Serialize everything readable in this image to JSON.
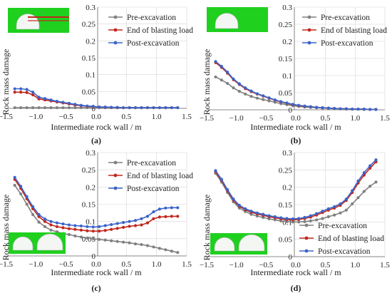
{
  "chart_data": [
    {
      "type": "line",
      "panel_label": "(a)",
      "xlabel": "Intermediate rock wall / m",
      "ylabel": "Rock mass damage",
      "xlim": [
        -1.5,
        1.5
      ],
      "ylim": [
        0,
        0.3
      ],
      "xticks": [
        "−1.5",
        "−1.0",
        "−0.5",
        "0.0",
        "0.5",
        "1.0",
        "1.5"
      ],
      "yticks": [
        "0",
        "0.05",
        "0.1",
        "0.15",
        "0.2",
        "0.25",
        "0.3"
      ],
      "grid": true,
      "legend_position": "top-right",
      "inset": "single-tunnel",
      "x": [
        -1.35,
        -1.25,
        -1.15,
        -1.05,
        -0.95,
        -0.85,
        -0.75,
        -0.65,
        -0.55,
        -0.45,
        -0.35,
        -0.25,
        -0.15,
        -0.05,
        0.05,
        0.15,
        0.25,
        0.35,
        0.45,
        0.55,
        0.65,
        0.75,
        0.85,
        0.95,
        1.05,
        1.15,
        1.25,
        1.35
      ],
      "series": [
        {
          "name": "Pre-excavation",
          "color": "#808080",
          "values": [
            0.002,
            0.002,
            0.002,
            0.002,
            0.002,
            0.002,
            0.002,
            0.002,
            0.002,
            0.002,
            0.002,
            0.002,
            0.002,
            0.002,
            0.002,
            0.002,
            0.002,
            0.002,
            0.002,
            0.002,
            0.002,
            0.002,
            0.002,
            0.002,
            0.002,
            0.002,
            0.002,
            0.002
          ]
        },
        {
          "name": "End of blasting load",
          "color": "#c0281e",
          "values": [
            0.048,
            0.048,
            0.047,
            0.04,
            0.028,
            0.025,
            0.022,
            0.019,
            0.016,
            0.013,
            0.01,
            0.008,
            0.006,
            0.005,
            0.004,
            0.003,
            0.003,
            0.002,
            0.002,
            0.002,
            0.002,
            0.002,
            0.002,
            0.002,
            0.002,
            0.002,
            0.002,
            0.002
          ]
        },
        {
          "name": "Post-excavation",
          "color": "#3c64c8",
          "values": [
            0.058,
            0.058,
            0.056,
            0.048,
            0.033,
            0.029,
            0.025,
            0.021,
            0.018,
            0.015,
            0.012,
            0.009,
            0.007,
            0.006,
            0.004,
            0.004,
            0.003,
            0.003,
            0.002,
            0.002,
            0.002,
            0.002,
            0.002,
            0.002,
            0.002,
            0.002,
            0.002,
            0.002
          ]
        }
      ]
    },
    {
      "type": "line",
      "panel_label": "(b)",
      "xlabel": "Intermediate rock wall / m",
      "ylabel": "Rock mass damage",
      "xlim": [
        -1.5,
        1.5
      ],
      "ylim": [
        0,
        0.3
      ],
      "xticks": [
        "−1.5",
        "−1.0",
        "−0.5",
        "0.0",
        "0.5",
        "1.0",
        "1.5"
      ],
      "yticks": [
        "0",
        "0.05",
        "0.1",
        "0.15",
        "0.2",
        "0.25",
        "0.3"
      ],
      "grid": true,
      "legend_position": "top-right",
      "inset": "single-tunnel",
      "x": [
        -1.35,
        -1.25,
        -1.15,
        -1.05,
        -0.95,
        -0.85,
        -0.75,
        -0.65,
        -0.55,
        -0.45,
        -0.35,
        -0.25,
        -0.15,
        -0.05,
        0.05,
        0.15,
        0.25,
        0.35,
        0.45,
        0.55,
        0.65,
        0.75,
        0.85,
        0.95,
        1.05,
        1.15,
        1.25,
        1.35
      ],
      "series": [
        {
          "name": "Pre-excavation",
          "color": "#808080",
          "values": [
            0.096,
            0.087,
            0.077,
            0.064,
            0.054,
            0.046,
            0.039,
            0.034,
            0.03,
            0.026,
            0.022,
            0.018,
            0.015,
            0.012,
            0.01,
            0.008,
            0.007,
            0.006,
            0.005,
            0.004,
            0.003,
            0.003,
            0.002,
            0.002,
            0.002,
            0.001,
            0.001,
            0.001
          ]
        },
        {
          "name": "End of blasting load",
          "color": "#c0281e",
          "values": [
            0.138,
            0.124,
            0.107,
            0.088,
            0.074,
            0.062,
            0.053,
            0.046,
            0.04,
            0.034,
            0.028,
            0.023,
            0.019,
            0.015,
            0.012,
            0.01,
            0.009,
            0.007,
            0.006,
            0.005,
            0.004,
            0.003,
            0.003,
            0.002,
            0.002,
            0.002,
            0.001,
            0.001
          ]
        },
        {
          "name": "Post-excavation",
          "color": "#3c64c8",
          "values": [
            0.141,
            0.127,
            0.11,
            0.09,
            0.076,
            0.064,
            0.055,
            0.047,
            0.041,
            0.035,
            0.029,
            0.024,
            0.02,
            0.016,
            0.013,
            0.011,
            0.009,
            0.007,
            0.006,
            0.005,
            0.004,
            0.003,
            0.003,
            0.002,
            0.002,
            0.002,
            0.001,
            0.001
          ]
        }
      ]
    },
    {
      "type": "line",
      "panel_label": "(c)",
      "xlabel": "Intermediate rock wall / m",
      "ylabel": "Rock mass damage",
      "xlim": [
        -1.5,
        1.5
      ],
      "ylim": [
        0,
        0.3
      ],
      "xticks": [
        "−1.5",
        "−1.0",
        "−0.5",
        "0.0",
        "0.5",
        "1.0",
        "1.5"
      ],
      "yticks": [
        "0",
        "0.05",
        "0.1",
        "0.15",
        "0.2",
        "0.25",
        "0.3"
      ],
      "grid": true,
      "legend_position": "top-right",
      "inset": "twin-tunnel",
      "x": [
        -1.35,
        -1.25,
        -1.15,
        -1.05,
        -0.95,
        -0.85,
        -0.75,
        -0.65,
        -0.55,
        -0.45,
        -0.35,
        -0.25,
        -0.15,
        -0.05,
        0.05,
        0.15,
        0.25,
        0.35,
        0.45,
        0.55,
        0.65,
        0.75,
        0.85,
        0.95,
        1.05,
        1.15,
        1.25,
        1.35
      ],
      "series": [
        {
          "name": "Pre-excavation",
          "color": "#808080",
          "values": [
            0.205,
            0.18,
            0.15,
            0.12,
            0.098,
            0.085,
            0.075,
            0.07,
            0.065,
            0.062,
            0.058,
            0.055,
            0.052,
            0.05,
            0.048,
            0.046,
            0.044,
            0.042,
            0.04,
            0.038,
            0.035,
            0.033,
            0.03,
            0.026,
            0.022,
            0.018,
            0.014,
            0.01
          ]
        },
        {
          "name": "End of blasting load",
          "color": "#c0281e",
          "values": [
            0.222,
            0.196,
            0.166,
            0.137,
            0.114,
            0.1,
            0.09,
            0.085,
            0.082,
            0.079,
            0.077,
            0.075,
            0.073,
            0.072,
            0.072,
            0.074,
            0.077,
            0.08,
            0.083,
            0.086,
            0.088,
            0.09,
            0.096,
            0.108,
            0.113,
            0.114,
            0.115,
            0.115
          ]
        },
        {
          "name": "Post-excavation",
          "color": "#3c64c8",
          "values": [
            0.228,
            0.202,
            0.172,
            0.143,
            0.12,
            0.107,
            0.1,
            0.096,
            0.093,
            0.09,
            0.088,
            0.087,
            0.085,
            0.084,
            0.085,
            0.088,
            0.091,
            0.094,
            0.097,
            0.1,
            0.103,
            0.108,
            0.115,
            0.128,
            0.136,
            0.139,
            0.14,
            0.14
          ]
        }
      ]
    },
    {
      "type": "line",
      "panel_label": "(d)",
      "xlabel": "Intermediate rock wall / m",
      "ylabel": "Rock mass damage",
      "xlim": [
        -1.5,
        1.5
      ],
      "ylim": [
        0,
        0.3
      ],
      "xticks": [
        "−1.5",
        "−1.0",
        "−0.5",
        "0.0",
        "0.5",
        "1.0",
        "1.5"
      ],
      "yticks": [
        "0",
        "0.05",
        "0.1",
        "0.15",
        "0.2",
        "0.25",
        "0.3"
      ],
      "grid": true,
      "legend_position": "bottom-right",
      "inset": "twin-tunnel",
      "x": [
        -1.35,
        -1.25,
        -1.15,
        -1.05,
        -0.95,
        -0.85,
        -0.75,
        -0.65,
        -0.55,
        -0.45,
        -0.35,
        -0.25,
        -0.15,
        -0.05,
        0.05,
        0.15,
        0.25,
        0.35,
        0.45,
        0.55,
        0.65,
        0.75,
        0.85,
        0.95,
        1.05,
        1.15,
        1.25,
        1.35
      ],
      "series": [
        {
          "name": "Pre-excavation",
          "color": "#808080",
          "values": [
            0.24,
            0.215,
            0.185,
            0.158,
            0.14,
            0.13,
            0.122,
            0.117,
            0.113,
            0.109,
            0.106,
            0.103,
            0.101,
            0.1,
            0.1,
            0.101,
            0.103,
            0.106,
            0.11,
            0.115,
            0.12,
            0.126,
            0.134,
            0.152,
            0.17,
            0.188,
            0.203,
            0.215
          ]
        },
        {
          "name": "End of blasting load",
          "color": "#c0281e",
          "values": [
            0.245,
            0.22,
            0.19,
            0.163,
            0.145,
            0.135,
            0.128,
            0.123,
            0.119,
            0.115,
            0.112,
            0.109,
            0.107,
            0.106,
            0.107,
            0.11,
            0.114,
            0.12,
            0.127,
            0.134,
            0.14,
            0.148,
            0.162,
            0.185,
            0.212,
            0.235,
            0.255,
            0.273
          ]
        },
        {
          "name": "Post-excavation",
          "color": "#3c64c8",
          "values": [
            0.248,
            0.223,
            0.193,
            0.166,
            0.148,
            0.138,
            0.131,
            0.126,
            0.122,
            0.118,
            0.115,
            0.112,
            0.11,
            0.109,
            0.11,
            0.113,
            0.118,
            0.124,
            0.131,
            0.138,
            0.144,
            0.152,
            0.166,
            0.19,
            0.218,
            0.242,
            0.262,
            0.279
          ]
        }
      ]
    }
  ]
}
